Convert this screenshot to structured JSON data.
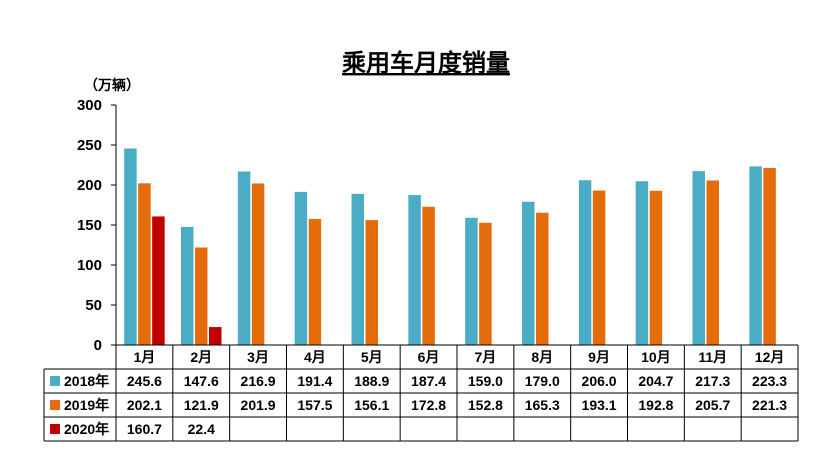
{
  "chart_data": {
    "type": "bar",
    "title": "乘用车月度销量",
    "unit_label": "（万辆）",
    "ylim": [
      0,
      300
    ],
    "yticks": [
      0,
      50,
      100,
      150,
      200,
      250,
      300
    ],
    "grid": false,
    "legend": "data-table",
    "categories": [
      "1月",
      "2月",
      "3月",
      "4月",
      "5月",
      "6月",
      "7月",
      "8月",
      "9月",
      "10月",
      "11月",
      "12月"
    ],
    "series": [
      {
        "name": "2018年",
        "color": "#4BACC6",
        "values": [
          245.6,
          147.6,
          216.9,
          191.4,
          188.9,
          187.4,
          159.0,
          179.0,
          206.0,
          204.7,
          217.3,
          223.3
        ],
        "labels": [
          "245.6",
          "147.6",
          "216.9",
          "191.4",
          "188.9",
          "187.4",
          "159.0",
          "179.0",
          "206.0",
          "204.7",
          "217.3",
          "223.3"
        ]
      },
      {
        "name": "2019年",
        "color": "#E46C0A",
        "values": [
          202.1,
          121.9,
          201.9,
          157.5,
          156.1,
          172.8,
          152.8,
          165.3,
          193.1,
          192.8,
          205.7,
          221.3
        ],
        "labels": [
          "202.1",
          "121.9",
          "201.9",
          "157.5",
          "156.1",
          "172.8",
          "152.8",
          "165.3",
          "193.1",
          "192.8",
          "205.7",
          "221.3"
        ]
      },
      {
        "name": "2020年",
        "color": "#C00000",
        "values": [
          160.7,
          22.4,
          null,
          null,
          null,
          null,
          null,
          null,
          null,
          null,
          null,
          null
        ],
        "labels": [
          "160.7",
          "22.4",
          "",
          "",
          "",
          "",
          "",
          "",
          "",
          "",
          "",
          ""
        ]
      }
    ]
  }
}
